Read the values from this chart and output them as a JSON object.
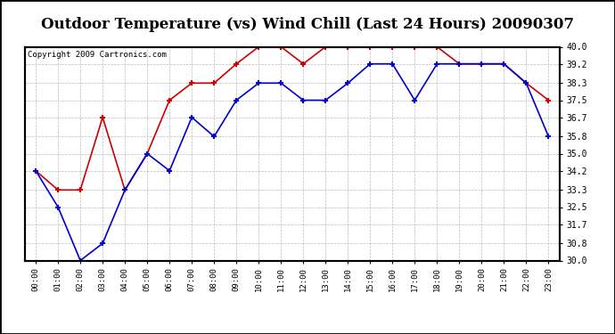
{
  "title": "Outdoor Temperature (vs) Wind Chill (Last 24 Hours) 20090307",
  "copyright": "Copyright 2009 Cartronics.com",
  "hours": [
    "00:00",
    "01:00",
    "02:00",
    "03:00",
    "04:00",
    "05:00",
    "06:00",
    "07:00",
    "08:00",
    "09:00",
    "10:00",
    "11:00",
    "12:00",
    "13:00",
    "14:00",
    "15:00",
    "16:00",
    "17:00",
    "18:00",
    "19:00",
    "20:00",
    "21:00",
    "22:00",
    "23:00"
  ],
  "temp": [
    34.2,
    33.3,
    33.3,
    36.7,
    33.3,
    35.0,
    37.5,
    38.3,
    38.3,
    39.2,
    40.0,
    40.0,
    39.2,
    40.0,
    40.0,
    40.0,
    40.0,
    40.0,
    40.0,
    39.2,
    39.2,
    39.2,
    38.3,
    37.5
  ],
  "wind_chill": [
    34.2,
    32.5,
    30.0,
    30.8,
    33.3,
    35.0,
    34.2,
    36.7,
    35.8,
    37.5,
    38.3,
    38.3,
    37.5,
    37.5,
    38.3,
    39.2,
    39.2,
    37.5,
    39.2,
    39.2,
    39.2,
    39.2,
    38.3,
    35.8
  ],
  "temp_color": "#cc0000",
  "wind_chill_color": "#0000cc",
  "ylim": [
    30.0,
    40.0
  ],
  "yticks": [
    30.0,
    30.8,
    31.7,
    32.5,
    33.3,
    34.2,
    35.0,
    35.8,
    36.7,
    37.5,
    38.3,
    39.2,
    40.0
  ],
  "bg_color": "#ffffff",
  "grid_color": "#aaaaaa",
  "title_fontsize": 12,
  "copyright_fontsize": 6.5
}
